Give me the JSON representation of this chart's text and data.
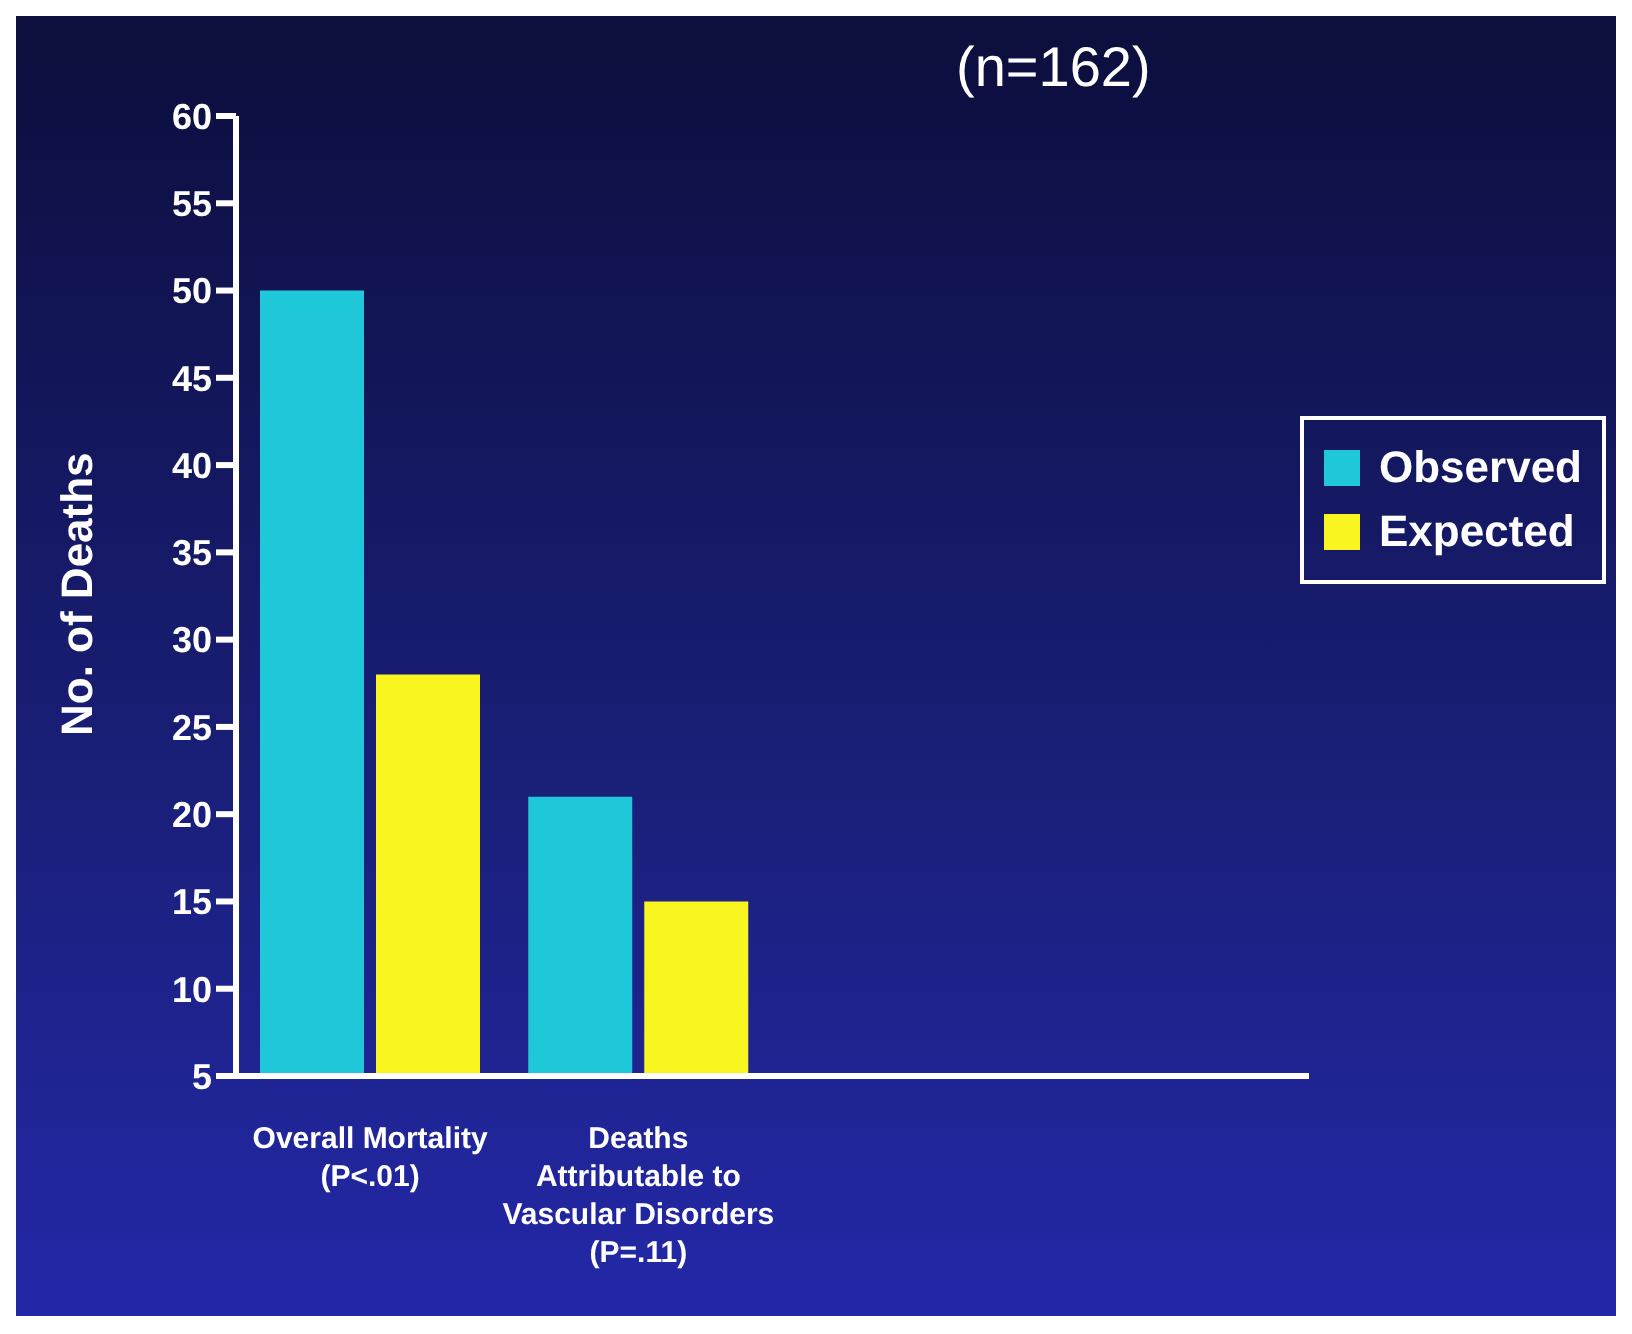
{
  "chart_data": {
    "type": "bar",
    "title": "(n=162)",
    "ylabel": "No. of Deaths",
    "categories": [
      "Overall Mortality (P<.01)",
      "Deaths Attributable to Vascular Disorders (P=.11)",
      null,
      null
    ],
    "series": [
      {
        "name": "Observed",
        "color": "#1ec8d8",
        "values": [
          50,
          21,
          null,
          null
        ]
      },
      {
        "name": "Expected",
        "color": "#f8f520",
        "values": [
          28,
          15,
          null,
          null
        ]
      }
    ],
    "ylim": [
      5,
      60
    ],
    "yticks": [
      5,
      10,
      15,
      20,
      25,
      30,
      35,
      40,
      45,
      50,
      55,
      60
    ],
    "grid": false,
    "legend": "right"
  }
}
